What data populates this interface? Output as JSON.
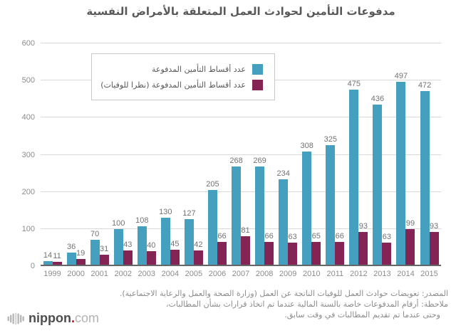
{
  "title": "مدفوعات التأمين لحوادث العمل المتعلقة بالأمراض النفسية",
  "legend": {
    "items": [
      {
        "label": "عدد أقساط التأمين المدفوعة",
        "color": "#45a0c0"
      },
      {
        "label": "عدد أقساط التأمين المدفوعة (نظرا للوفيات)",
        "color": "#832455"
      }
    ]
  },
  "chart_data": {
    "type": "bar",
    "categories": [
      "1999",
      "2000",
      "2001",
      "2002",
      "2003",
      "2004",
      "2005",
      "2006",
      "2007",
      "2008",
      "2009",
      "2010",
      "2011",
      "2012",
      "2013",
      "2014",
      "2015"
    ],
    "series": [
      {
        "name": "عدد أقساط التأمين المدفوعة",
        "color": "#45a0c0",
        "values": [
          14,
          36,
          70,
          100,
          108,
          130,
          127,
          205,
          268,
          269,
          234,
          308,
          325,
          475,
          436,
          497,
          472
        ]
      },
      {
        "name": "عدد أقساط التأمين المدفوعة (نظرا للوفيات)",
        "color": "#832455",
        "values": [
          11,
          19,
          31,
          43,
          40,
          45,
          42,
          66,
          81,
          66,
          63,
          65,
          66,
          93,
          63,
          99,
          93
        ]
      }
    ],
    "ylim": [
      0,
      600
    ],
    "yticks": [
      0,
      100,
      200,
      300,
      400,
      500,
      600
    ],
    "grid": true,
    "legend_position": "inside-top-left",
    "xlabel": "",
    "ylabel": ""
  },
  "footer": {
    "source": "المصدر: تعويضات حوادث العمل للوفيات الناتجة عن العمل (وزارة الصحة والعمل والرعاية الاجتماعية).",
    "note_line1": "ملاحظة: أرقام المدفوعات خاصة بالسنة المالية عندما تم اتخاذ قرارات بشأن المطالبات،",
    "note_line2": "وحتى عندما تم تقديم المطالبات في وقت سابق."
  },
  "logo": {
    "name": "nippon",
    "dot": ".",
    "tld": "com"
  }
}
